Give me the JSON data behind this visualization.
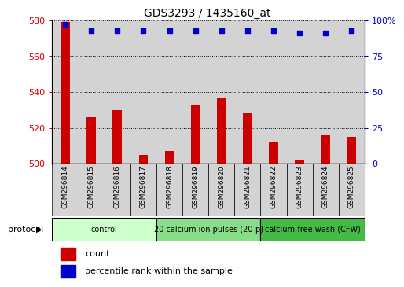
{
  "title": "GDS3293 / 1435160_at",
  "samples": [
    "GSM296814",
    "GSM296815",
    "GSM296816",
    "GSM296817",
    "GSM296818",
    "GSM296819",
    "GSM296820",
    "GSM296821",
    "GSM296822",
    "GSM296823",
    "GSM296824",
    "GSM296825"
  ],
  "counts": [
    579,
    526,
    530,
    505,
    507,
    533,
    537,
    528,
    512,
    502,
    516,
    515
  ],
  "percentile_ranks": [
    97,
    93,
    93,
    93,
    93,
    93,
    93,
    93,
    93,
    91,
    91,
    93
  ],
  "ylim_left": [
    500,
    580
  ],
  "ylim_right": [
    0,
    100
  ],
  "yticks_left": [
    500,
    520,
    540,
    560,
    580
  ],
  "yticks_right": [
    0,
    25,
    50,
    75,
    100
  ],
  "bar_color": "#cc0000",
  "dot_color": "#0000cc",
  "bg_color": "#ffffff",
  "col_bg_color": "#d3d3d3",
  "protocol_groups": [
    {
      "label": "control",
      "start": 0,
      "end": 3,
      "color": "#ccffcc"
    },
    {
      "label": "20 calcium ion pulses (20-p)",
      "start": 4,
      "end": 7,
      "color": "#99ee99"
    },
    {
      "label": "calcium-free wash (CFW)",
      "start": 8,
      "end": 11,
      "color": "#44cc44"
    }
  ],
  "legend_count_label": "count",
  "legend_pct_label": "percentile rank within the sample",
  "protocol_label": "protocol"
}
